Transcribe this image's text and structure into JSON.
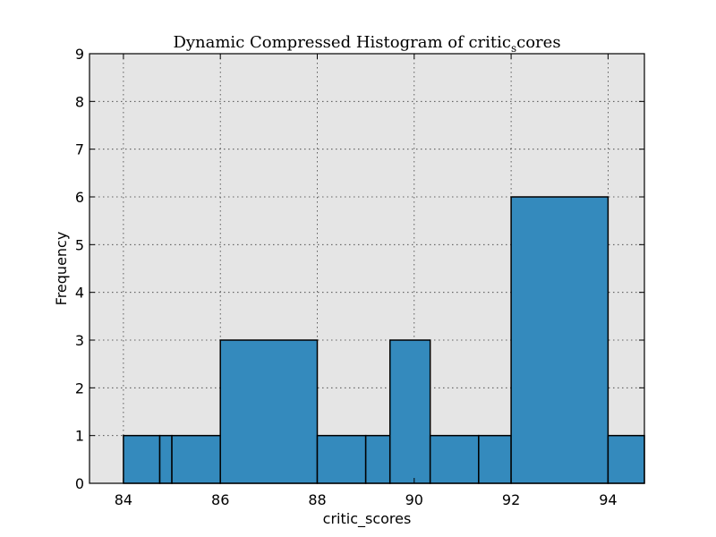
{
  "chart_data": {
    "type": "bar",
    "title_main": "Dynamic Compressed Histogram of critic",
    "title_sub": "s",
    "title_tail": "cores",
    "xlabel": "critic_scores",
    "ylabel": "Frequency",
    "xlim": [
      83.3,
      94.75
    ],
    "ylim": [
      0,
      9
    ],
    "xticks": [
      "84",
      "86",
      "88",
      "90",
      "92",
      "94"
    ],
    "xtick_values": [
      84,
      86,
      88,
      90,
      92,
      94
    ],
    "yticks": [
      "0",
      "1",
      "2",
      "3",
      "4",
      "5",
      "6",
      "7",
      "8",
      "9"
    ],
    "ytick_values": [
      0,
      1,
      2,
      3,
      4,
      5,
      6,
      7,
      8,
      9
    ],
    "grid": true,
    "bar_color": "#348abd",
    "plot_background": "#e5e5e5",
    "bins": [
      {
        "x0": 84.0,
        "x1": 84.75,
        "value": 1
      },
      {
        "x0": 84.75,
        "x1": 85.0,
        "value": 1
      },
      {
        "x0": 85.0,
        "x1": 86.0,
        "value": 1
      },
      {
        "x0": 86.0,
        "x1": 88.0,
        "value": 3
      },
      {
        "x0": 88.0,
        "x1": 89.0,
        "value": 1
      },
      {
        "x0": 89.0,
        "x1": 89.5,
        "value": 1
      },
      {
        "x0": 89.5,
        "x1": 90.33,
        "value": 3
      },
      {
        "x0": 90.33,
        "x1": 91.33,
        "value": 1
      },
      {
        "x0": 91.33,
        "x1": 92.0,
        "value": 1
      },
      {
        "x0": 92.0,
        "x1": 94.0,
        "value": 6
      },
      {
        "x0": 94.0,
        "x1": 94.75,
        "value": 1
      }
    ]
  }
}
